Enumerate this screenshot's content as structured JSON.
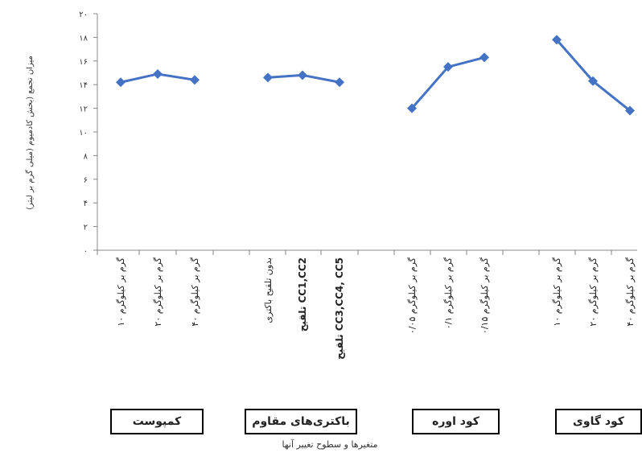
{
  "chart_data": {
    "type": "line",
    "ylabel": "میزان تجمع (بخش کادمیوم (میلی گرم بر لیتر)",
    "xlabel": "متغیرها و سطوح تغییر آنها",
    "ylim": [
      0,
      20
    ],
    "yticks": [
      "۰",
      "۲",
      "۴",
      "۶",
      "۸",
      "۱۰",
      "۱۲",
      "۱۴",
      "۱۶",
      "۱۸",
      "۲۰"
    ],
    "ytick_values": [
      0,
      2,
      4,
      6,
      8,
      10,
      12,
      14,
      16,
      18,
      20
    ],
    "color": "#4472c4",
    "groups": [
      {
        "name": "کمپوست",
        "categories": [
          "۱۰ گرم بر کیلوگرم",
          "۲۰ گرم بر کیلوگرم",
          "۴۰ گرم بر کیلوگرم"
        ],
        "values": [
          14.2,
          14.9,
          14.4
        ]
      },
      {
        "name": "باکتری‌های مقاوم",
        "categories": [
          "بدون تلقیح باکتری",
          "تلقیح CC1,CC2",
          "تلقیح CC3,CC4, CC5"
        ],
        "values": [
          14.6,
          14.8,
          14.2
        ]
      },
      {
        "name": "کود اوره",
        "categories": [
          "۰/۰۵ گرم بر کیلوگرم",
          "۰/۱ گرم بر کیلوگرم",
          "۰/۱۵ گرم بر کیلوگرم"
        ],
        "values": [
          12.0,
          15.5,
          16.3
        ]
      },
      {
        "name": "کود گاوی",
        "categories": [
          "۱۰ گرم بر کیلوگرم",
          "۲۰ گرم بر کیلوگرم",
          "۴۰ گرم بر کیلوگرم"
        ],
        "values": [
          17.8,
          14.3,
          11.8
        ]
      }
    ]
  }
}
